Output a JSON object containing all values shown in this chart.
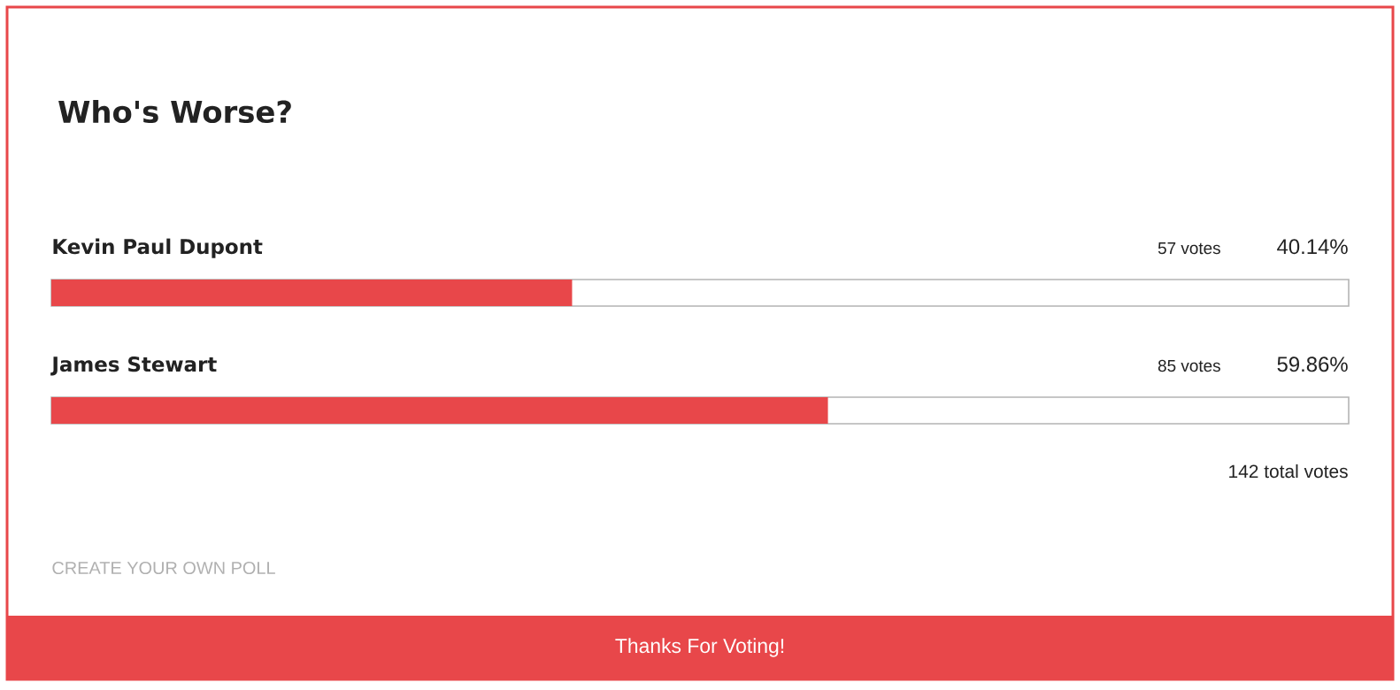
{
  "chart_data": {
    "type": "bar",
    "orientation": "horizontal",
    "title": "Who's Worse?",
    "categories": [
      "Kevin Paul Dupont",
      "James Stewart"
    ],
    "values": [
      40.14,
      59.86
    ],
    "value_labels": [
      "40.14%",
      "59.86%"
    ],
    "color": "#e8474a",
    "xlim": [
      0,
      100
    ],
    "tick_labels": false,
    "annotations": [
      "57 votes",
      "85 votes",
      "142 total votes",
      "CREATE YOUR OWN POLL",
      "Thanks For Voting!"
    ]
  }
}
